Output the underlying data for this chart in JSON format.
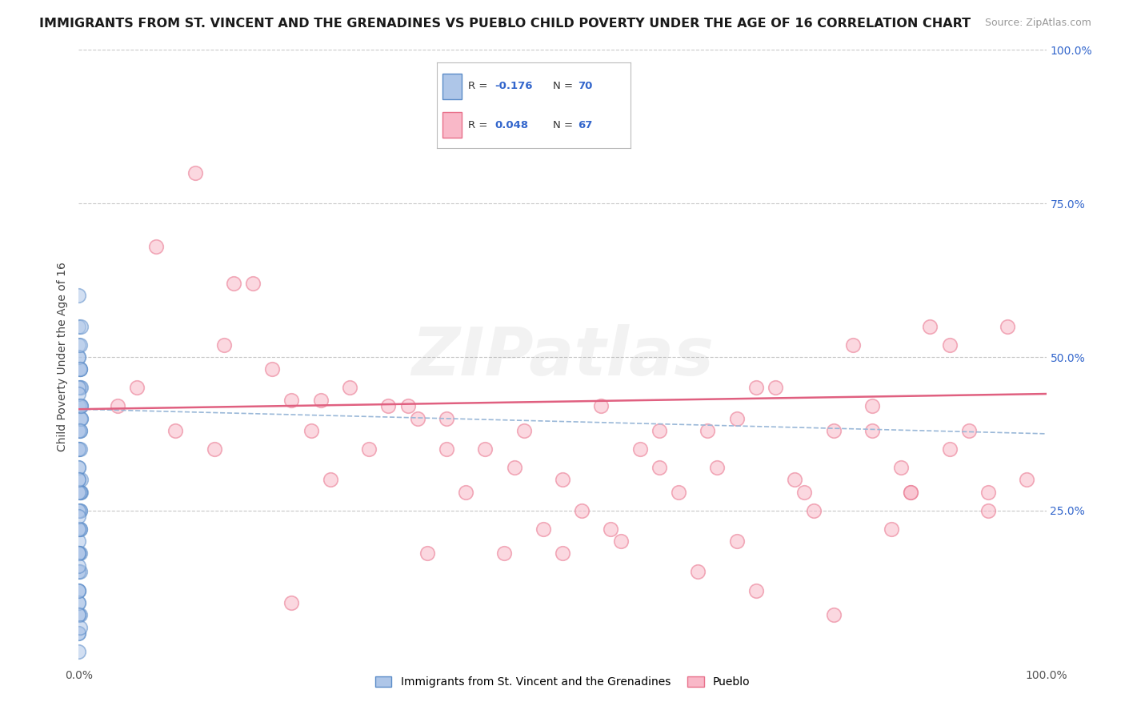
{
  "title": "IMMIGRANTS FROM ST. VINCENT AND THE GRENADINES VS PUEBLO CHILD POVERTY UNDER THE AGE OF 16 CORRELATION CHART",
  "source": "Source: ZipAtlas.com",
  "ylabel": "Child Poverty Under the Age of 16",
  "watermark": "ZIPatlas",
  "legend_label1": "Immigrants from St. Vincent and the Grenadines",
  "legend_label2": "Pueblo",
  "blue_face_color": "#aec6e8",
  "blue_edge_color": "#5b8cc8",
  "pink_face_color": "#f9b8c8",
  "pink_edge_color": "#e8708a",
  "blue_trend_color": "#9ab8d8",
  "pink_trend_color": "#e06080",
  "r_n_color": "#3366cc",
  "tick_color": "#3366cc",
  "background_color": "#ffffff",
  "grid_color": "#c8c8c8",
  "xlim": [
    0.0,
    1.0
  ],
  "ylim": [
    0.0,
    1.0
  ],
  "blue_r": "-0.176",
  "blue_n": "70",
  "pink_r": "0.048",
  "pink_n": "67",
  "blue_trend_x0": 0.0,
  "blue_trend_y0": 0.415,
  "blue_trend_x1": 1.0,
  "blue_trend_y1": 0.375,
  "pink_trend_x0": 0.0,
  "pink_trend_y0": 0.415,
  "pink_trend_x1": 1.0,
  "pink_trend_y1": 0.44,
  "blue_scatter_x": [
    0.0,
    0.001,
    0.0,
    0.002,
    0.0,
    0.001,
    0.0,
    0.0,
    0.001,
    0.0,
    0.0,
    0.002,
    0.0,
    0.001,
    0.0,
    0.0,
    0.001,
    0.0,
    0.002,
    0.0,
    0.0,
    0.001,
    0.0,
    0.0,
    0.001,
    0.0,
    0.002,
    0.0,
    0.001,
    0.0,
    0.0,
    0.001,
    0.0,
    0.0,
    0.001,
    0.0,
    0.0,
    0.001,
    0.0,
    0.002,
    0.0,
    0.001,
    0.0,
    0.0,
    0.001,
    0.0,
    0.0,
    0.001,
    0.0,
    0.002,
    0.0,
    0.001,
    0.0,
    0.0,
    0.001,
    0.0,
    0.002,
    0.0,
    0.001,
    0.0,
    0.0,
    0.001,
    0.0,
    0.0,
    0.001,
    0.0,
    0.002,
    0.0,
    0.001,
    0.0
  ],
  "blue_scatter_y": [
    0.42,
    0.38,
    0.35,
    0.28,
    0.32,
    0.45,
    0.22,
    0.18,
    0.25,
    0.15,
    0.48,
    0.3,
    0.12,
    0.4,
    0.2,
    0.5,
    0.08,
    0.35,
    0.42,
    0.1,
    0.55,
    0.28,
    0.05,
    0.38,
    0.22,
    0.15,
    0.45,
    0.32,
    0.48,
    0.18,
    0.6,
    0.25,
    0.02,
    0.35,
    0.18,
    0.08,
    0.42,
    0.28,
    0.52,
    0.4,
    0.05,
    0.22,
    0.38,
    0.12,
    0.48,
    0.3,
    0.18,
    0.42,
    0.25,
    0.55,
    0.1,
    0.35,
    0.45,
    0.5,
    0.15,
    0.28,
    0.4,
    0.08,
    0.52,
    0.22,
    0.12,
    0.38,
    0.18,
    0.44,
    0.06,
    0.3,
    0.42,
    0.16,
    0.48,
    0.24
  ],
  "pink_scatter_x": [
    0.04,
    0.12,
    0.18,
    0.06,
    0.1,
    0.15,
    0.22,
    0.28,
    0.32,
    0.38,
    0.42,
    0.46,
    0.5,
    0.54,
    0.58,
    0.62,
    0.66,
    0.7,
    0.74,
    0.78,
    0.82,
    0.86,
    0.9,
    0.94,
    0.98,
    0.65,
    0.72,
    0.8,
    0.88,
    0.96,
    0.2,
    0.25,
    0.3,
    0.35,
    0.4,
    0.45,
    0.55,
    0.6,
    0.68,
    0.75,
    0.85,
    0.92,
    0.08,
    0.14,
    0.26,
    0.36,
    0.48,
    0.52,
    0.56,
    0.64,
    0.76,
    0.84,
    0.24,
    0.44,
    0.7,
    0.78,
    0.86,
    0.16,
    0.34,
    0.6,
    0.68,
    0.9,
    0.38,
    0.5,
    0.82,
    0.94,
    0.22
  ],
  "pink_scatter_y": [
    0.42,
    0.8,
    0.62,
    0.45,
    0.38,
    0.52,
    0.43,
    0.45,
    0.42,
    0.4,
    0.35,
    0.38,
    0.3,
    0.42,
    0.35,
    0.28,
    0.32,
    0.45,
    0.3,
    0.38,
    0.42,
    0.28,
    0.35,
    0.25,
    0.3,
    0.38,
    0.45,
    0.52,
    0.55,
    0.55,
    0.48,
    0.43,
    0.35,
    0.4,
    0.28,
    0.32,
    0.22,
    0.38,
    0.4,
    0.28,
    0.32,
    0.38,
    0.68,
    0.35,
    0.3,
    0.18,
    0.22,
    0.25,
    0.2,
    0.15,
    0.25,
    0.22,
    0.38,
    0.18,
    0.12,
    0.08,
    0.28,
    0.62,
    0.42,
    0.32,
    0.2,
    0.52,
    0.35,
    0.18,
    0.38,
    0.28,
    0.1
  ],
  "scatter_size": 160,
  "scatter_alpha": 0.55,
  "scatter_lw": 1.2,
  "title_fontsize": 11.5,
  "source_fontsize": 9,
  "ylabel_fontsize": 10,
  "tick_fontsize": 10,
  "legend_fontsize": 10,
  "watermark_fontsize": 60,
  "watermark_alpha": 0.1
}
